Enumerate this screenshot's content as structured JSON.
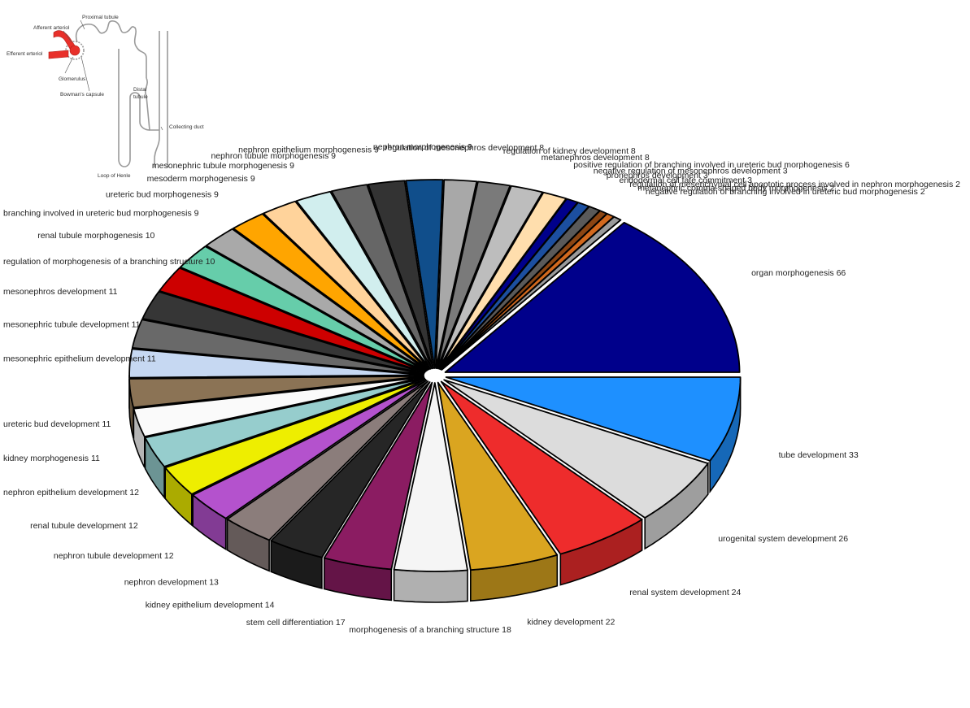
{
  "inset": {
    "labels": {
      "proximal_tubule": "Proximal tubule",
      "afferent_arteriol": "Afferent arteriol",
      "efferent_erteriol": "Efferent erteriol",
      "glomerulus": "Glomerulus",
      "bowmans_capsule": "Bowman's capsule",
      "distal_tubule_1": "Distal",
      "distal_tubule_2": "tubule",
      "collecting_duct": "Collecting duct",
      "loop_of_henle": "Loop of Henle"
    }
  },
  "chart_data": {
    "type": "pie",
    "style": "3d-exploded",
    "title": "",
    "slices": [
      {
        "label": "organ morphogenesis",
        "value": 66,
        "color": "#00008b"
      },
      {
        "label": "negative regulation of branching involved in ureteric bud morphogenesis",
        "value": 2,
        "color": "#9a9a9a"
      },
      {
        "label": "metanephric comma-shaped body morphogenesis",
        "value": 2,
        "color": "#d2691e"
      },
      {
        "label": "regulation of mesenchymal cell apoptotic process involved in nephron morphogenesis",
        "value": 2,
        "color": "#8b4513"
      },
      {
        "label": "endodermal cell fate commitment",
        "value": 3,
        "color": "#5a5a5a"
      },
      {
        "label": "pronephros development",
        "value": 3,
        "color": "#1c4fa0"
      },
      {
        "label": "negative regulation of mesonephros development",
        "value": 3,
        "color": "#00008b"
      },
      {
        "label": "positive regulation of branching involved in ureteric bud morphogenesis",
        "value": 6,
        "color": "#ffdead"
      },
      {
        "label": "metanephros development",
        "value": 8,
        "color": "#bdbdbd"
      },
      {
        "label": "regulation of kidney development",
        "value": 8,
        "color": "#7a7a7a"
      },
      {
        "label": "regulation of mesonephros development",
        "value": 8,
        "color": "#a8a8a8"
      },
      {
        "label": "nephron morphogenesis",
        "value": 9,
        "color": "#104e8b"
      },
      {
        "label": "nephron epithelium morphogenesis",
        "value": 9,
        "color": "#333333"
      },
      {
        "label": "nephron tubule morphogenesis",
        "value": 9,
        "color": "#666666"
      },
      {
        "label": "mesonephric tubule morphogenesis",
        "value": 9,
        "color": "#d1eeee"
      },
      {
        "label": "mesoderm morphogenesis",
        "value": 9,
        "color": "#ffd39b"
      },
      {
        "label": "ureteric bud morphogenesis",
        "value": 9,
        "color": "#ffa500"
      },
      {
        "label": "branching involved in ureteric bud morphogenesis",
        "value": 9,
        "color": "#a9a9a9"
      },
      {
        "label": "renal tubule morphogenesis",
        "value": 10,
        "color": "#66cdaa"
      },
      {
        "label": "regulation of morphogenesis of a branching structure",
        "value": 10,
        "color": "#cd0000"
      },
      {
        "label": "mesonephros development",
        "value": 11,
        "color": "#363636"
      },
      {
        "label": "mesonephric tubule development",
        "value": 11,
        "color": "#696969"
      },
      {
        "label": "mesonephric epithelium development",
        "value": 11,
        "color": "#c6d8f2"
      },
      {
        "label": "ureteric bud development",
        "value": 11,
        "color": "#8b7355"
      },
      {
        "label": "kidney morphogenesis",
        "value": 11,
        "color": "#fafafa"
      },
      {
        "label": "nephron epithelium development",
        "value": 12,
        "color": "#96cdcd"
      },
      {
        "label": "renal tubule development",
        "value": 12,
        "color": "#eeee00"
      },
      {
        "label": "nephron tubule development",
        "value": 12,
        "color": "#b452cd"
      },
      {
        "label": "nephron development",
        "value": 13,
        "color": "#8b7d7b"
      },
      {
        "label": "kidney epithelium development",
        "value": 14,
        "color": "#262626"
      },
      {
        "label": "stem cell differentiation",
        "value": 17,
        "color": "#8b1c62"
      },
      {
        "label": "morphogenesis of a branching structure",
        "value": 18,
        "color": "#f5f5f5"
      },
      {
        "label": "kidney development",
        "value": 22,
        "color": "#daa520"
      },
      {
        "label": "renal system development",
        "value": 24,
        "color": "#ee2c2c"
      },
      {
        "label": "urogenital system development",
        "value": 26,
        "color": "#dcdcdc"
      },
      {
        "label": "tube development",
        "value": 33,
        "color": "#1e90ff"
      }
    ]
  }
}
